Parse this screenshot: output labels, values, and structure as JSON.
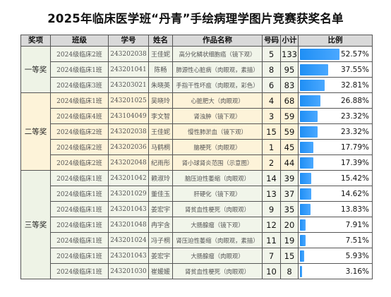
{
  "title": "2025年临床医学班“丹青”手绘病理学图片竞赛获奖名单",
  "headers": [
    "奖项",
    "班级",
    "学号",
    "姓名",
    "作品名称",
    "号码",
    "小计",
    "比例"
  ],
  "groups": [
    {
      "award": "一等奖",
      "rows": [
        {
          "class": "2024级临床2班",
          "id": "243202038",
          "name": "王佳妮",
          "work": "高分化鳞状细胞癌（镜下观）",
          "no": "5",
          "count": "133",
          "pct": "52.57%",
          "value": 52.57
        },
        {
          "class": "2024级临床1班",
          "id": "243201041",
          "name": "陈畅",
          "work": "肺源性心脏病（肉眼观，素描）",
          "no": "8",
          "count": "95",
          "pct": "37.55%",
          "value": 37.55
        },
        {
          "class": "2024级临床3班",
          "id": "243203021",
          "name": "朱晓英",
          "work": "手指干性坏疽（肉眼观，彩色）",
          "no": "6",
          "count": "83",
          "pct": "32.81%",
          "value": 32.81
        }
      ]
    },
    {
      "award": "二等奖",
      "rows": [
        {
          "class": "2024级临床1班",
          "id": "243201025",
          "name": "吴晓玲",
          "work": "心脏肥大（肉眼观）",
          "no": "4",
          "count": "68",
          "pct": "26.88%",
          "value": 26.88
        },
        {
          "class": "2024级临床4班",
          "id": "243104049",
          "name": "李文智",
          "work": "肾浊肿（镜下观）",
          "no": "3",
          "count": "59",
          "pct": "23.32%",
          "value": 23.32
        },
        {
          "class": "2024级临床2班",
          "id": "243202038",
          "name": "王佳妮",
          "work": "慢性肺淤血（镜下观）",
          "no": "15",
          "count": "59",
          "pct": "23.32%",
          "value": 23.32
        },
        {
          "class": "2024级临床2班",
          "id": "243202036",
          "name": "马鹤桐",
          "work": "脑梗死（肉眼观）",
          "no": "1",
          "count": "45",
          "pct": "17.79%",
          "value": 17.79
        },
        {
          "class": "2024级临床2班",
          "id": "243202048",
          "name": "纪雨彤",
          "work": "肾小球肾炎范围（示意图）",
          "no": "2",
          "count": "44",
          "pct": "17.39%",
          "value": 17.39
        }
      ]
    },
    {
      "award": "三等奖",
      "rows": [
        {
          "class": "2024级临床1班",
          "id": "243201042",
          "name": "赖淑玲",
          "work": "脑压迫性萎缩（肉眼观）",
          "no": "14",
          "count": "39",
          "pct": "15.42%",
          "value": 15.42
        },
        {
          "class": "2024级临床1班",
          "id": "243201029",
          "name": "董佳玉",
          "work": "肝硬化（镜下观）",
          "no": "13",
          "count": "37",
          "pct": "14.62%",
          "value": 14.62
        },
        {
          "class": "2024级临床1班",
          "id": "243201043",
          "name": "姜宏宇",
          "work": "肾贫血性梗死（肉眼观）",
          "no": "9",
          "count": "35",
          "pct": "13.83%",
          "value": 13.83
        },
        {
          "class": "2024级临床1班",
          "id": "243201048",
          "name": "冉宇含",
          "work": "大肠腺瘤（镜下观）",
          "no": "12",
          "count": "20",
          "pct": "7.91%",
          "value": 7.91
        },
        {
          "class": "2024级临床1班",
          "id": "243201024",
          "name": "冯子桐",
          "work": "肾压迫性萎缩（肉眼观，素描）",
          "no": "11",
          "count": "19",
          "pct": "7.51%",
          "value": 7.51
        },
        {
          "class": "2024级临床1班",
          "id": "243201043",
          "name": "姜宏宇",
          "work": "大肠腺瘤（肉眼观）",
          "no": "7",
          "count": "15",
          "pct": "5.93%",
          "value": 5.93
        },
        {
          "class": "2024级临床1班",
          "id": "243201030",
          "name": "崔媛媛",
          "work": "肾贫血性梗死（肉眼观）",
          "no": "10",
          "count": "8",
          "pct": "3.16%",
          "value": 3.16
        }
      ]
    }
  ],
  "colors": {
    "bar": "#1f8ff5",
    "header_bg": "#d9d9d9",
    "first_third_bg": "#f1f5ea",
    "second_bg": "#fdf3d9"
  }
}
